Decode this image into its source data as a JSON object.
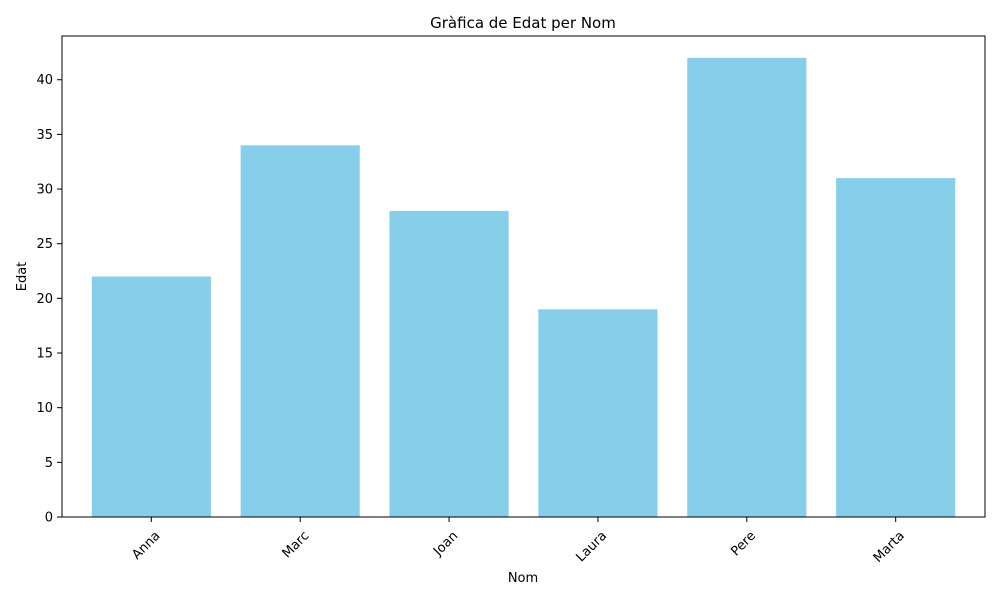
{
  "chart_data": {
    "type": "bar",
    "title": "Gràfica de Edat per Nom",
    "xlabel": "Nom",
    "ylabel": "Edat",
    "categories": [
      "Anna",
      "Marc",
      "Joan",
      "Laura",
      "Pere",
      "Marta"
    ],
    "values": [
      22,
      34,
      28,
      19,
      42,
      31
    ],
    "ylim": [
      0,
      44
    ],
    "yticks": [
      0,
      5,
      10,
      15,
      20,
      25,
      30,
      35,
      40
    ],
    "bar_color": "#87ceeb",
    "grid": false,
    "legend": "none",
    "xtick_rotation": 45
  }
}
